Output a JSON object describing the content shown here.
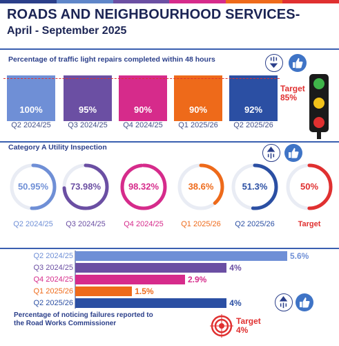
{
  "header": {
    "title": "ROADS AND NEIGHBOURHOOD SERVICES-",
    "subtitle": "April - September 2025",
    "stripe_colors": [
      "#2b3f8a",
      "#5f86c9",
      "#6b4fa3",
      "#d62b8b",
      "#ee6a1a",
      "#e03030"
    ]
  },
  "chart_data": [
    {
      "type": "bar",
      "title": "Percentage of traffic light repairs completed within 48 hours",
      "categories": [
        "Q2 2024/25",
        "Q3 2024/25",
        "Q4 2024/25",
        "Q1 2025/26",
        "Q2 2025/26"
      ],
      "values": [
        100,
        95,
        90,
        90,
        92
      ],
      "value_labels": [
        "100%",
        "95%",
        "90%",
        "90%",
        "92%"
      ],
      "colors": [
        "#6f8fd6",
        "#6b4fa3",
        "#d62b8b",
        "#ee6a1a",
        "#2b4fa3"
      ],
      "target": {
        "label": "Target",
        "value_label": "85%",
        "value": 85
      },
      "trend_icon": "arrow-down-icon",
      "rating_icon": "thumbs-up-icon"
    },
    {
      "type": "pie",
      "title": "Category A Utility Inspection",
      "categories": [
        "Q2 2024/25",
        "Q3 2024/25",
        "Q4 2024/25",
        "Q1 2025/26",
        "Q2 2025/26",
        "Target"
      ],
      "values": [
        50.95,
        73.98,
        98.32,
        38.6,
        51.3,
        50
      ],
      "value_labels": [
        "50.95%",
        "73.98%",
        "98.32%",
        "38.6%",
        "51.3%",
        "50%"
      ],
      "colors": [
        "#6f8fd6",
        "#6b4fa3",
        "#d62b8b",
        "#ee6a1a",
        "#2b4fa3",
        "#e03030"
      ],
      "trend_icon": "arrow-up-icon",
      "rating_icon": "thumbs-up-icon"
    },
    {
      "type": "bar",
      "orientation": "horizontal",
      "title": "Percentage of noticing failures reported to the Road Works Commissioner",
      "title_lines": [
        "Percentage of noticing failures reported to",
        "the Road Works Commissioner"
      ],
      "categories": [
        "Q2 2024/25",
        "Q3 2024/25",
        "Q4 2024/25",
        "Q1 2025/26",
        "Q2 2025/26"
      ],
      "values": [
        5.6,
        4,
        2.9,
        1.5,
        4
      ],
      "value_labels": [
        "5.6%",
        "4%",
        "2.9%",
        "1.5%",
        "4%"
      ],
      "colors": [
        "#6f8fd6",
        "#6b4fa3",
        "#d62b8b",
        "#ee6a1a",
        "#2b4fa3"
      ],
      "target": {
        "label": "Target",
        "value_label": "4%",
        "value": 4
      },
      "trend_icon": "arrow-up-icon",
      "rating_icon": "thumbs-up-icon"
    }
  ]
}
